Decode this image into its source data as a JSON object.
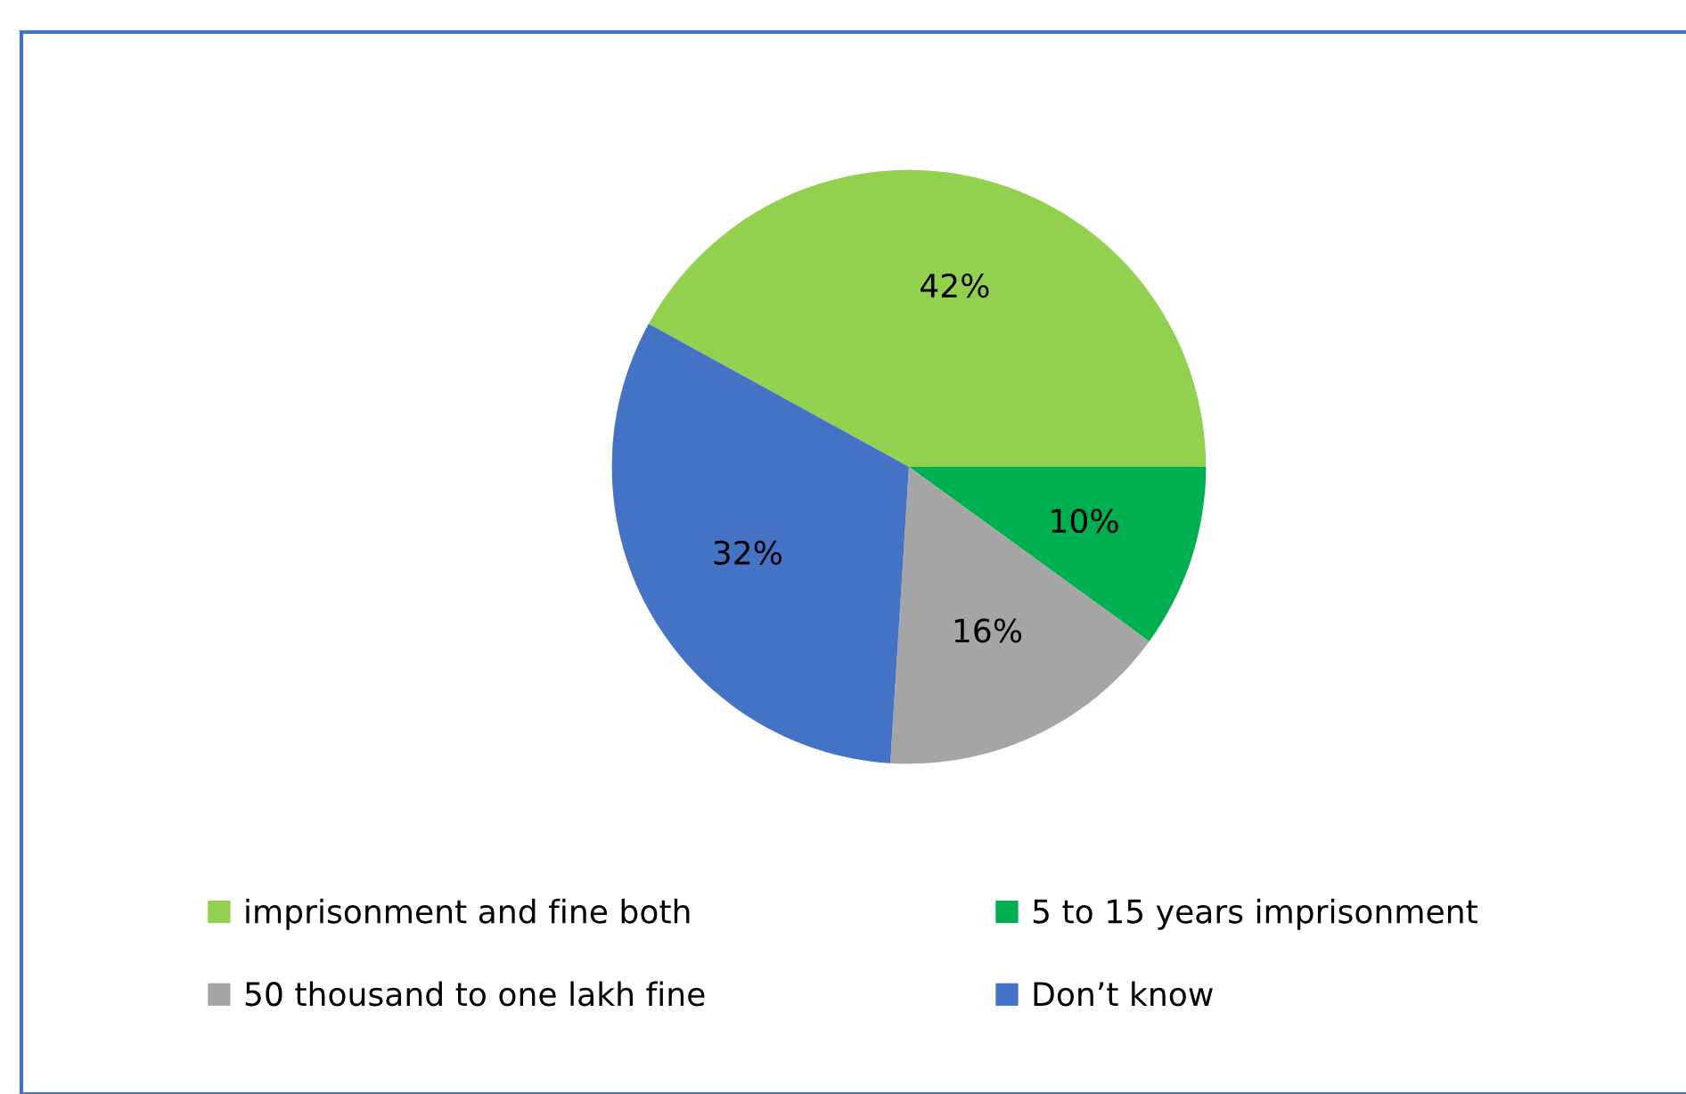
{
  "chart_data": {
    "type": "pie",
    "categories": [
      "imprisonment and fine both",
      "5 to 15 years imprisonment",
      "50 thousand to one lakh fine",
      "Don’t know"
    ],
    "values": [
      42,
      10,
      16,
      32
    ],
    "colors": [
      "#92d050",
      "#00b050",
      "#a5a5a5",
      "#4472c4"
    ],
    "value_labels": [
      "42%",
      "10%",
      "16%",
      "32%"
    ],
    "legend": "bottom"
  }
}
